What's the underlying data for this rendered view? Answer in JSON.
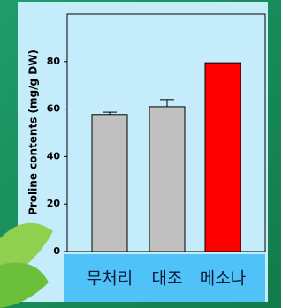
{
  "chart_data": {
    "type": "bar",
    "y_label": "Proline contents (mg/g DW)",
    "categories": [
      "무처리",
      "대조",
      "메소나"
    ],
    "values": [
      57.7,
      61,
      79.5
    ],
    "errors": [
      1,
      3,
      null
    ],
    "colors": [
      "#c0c0c0",
      "#c0c0c0",
      "#ff0000"
    ],
    "ylim": [
      0,
      100
    ],
    "yticks": [
      0,
      20,
      40,
      60,
      80
    ]
  }
}
